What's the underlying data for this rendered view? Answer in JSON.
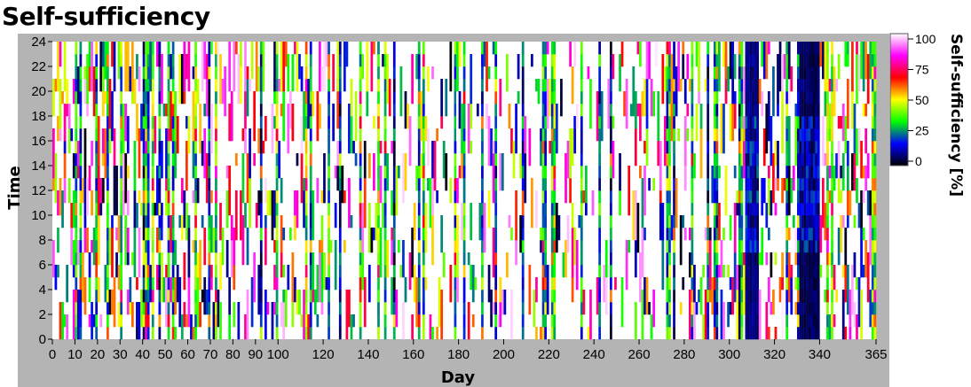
{
  "chart_data": {
    "type": "heatmap",
    "title": "Self-sufficiency",
    "xlabel": "Day",
    "ylabel": "Time",
    "xlim": [
      0,
      365
    ],
    "ylim": [
      0,
      24
    ],
    "x_ticks": [
      0,
      10,
      20,
      30,
      40,
      50,
      60,
      70,
      80,
      90,
      100,
      120,
      140,
      160,
      180,
      200,
      220,
      240,
      260,
      280,
      300,
      320,
      340,
      365
    ],
    "y_ticks": [
      0,
      2,
      4,
      6,
      8,
      10,
      12,
      14,
      16,
      18,
      20,
      22,
      24
    ],
    "colorbar": {
      "label": "Self-sufficiency [%]",
      "ticks": [
        0,
        25,
        50,
        75,
        100
      ],
      "range": [
        0,
        100
      ],
      "colors": [
        "#000000",
        "#0000ff",
        "#00ff00",
        "#ffff00",
        "#ff0000",
        "#ff00ff",
        "#ffffff"
      ]
    },
    "dominant_value": 100,
    "dark_periods": [
      {
        "days": [
          307,
          312
        ],
        "value": 5
      },
      {
        "days": [
          331,
          339
        ],
        "value": 3
      }
    ]
  }
}
